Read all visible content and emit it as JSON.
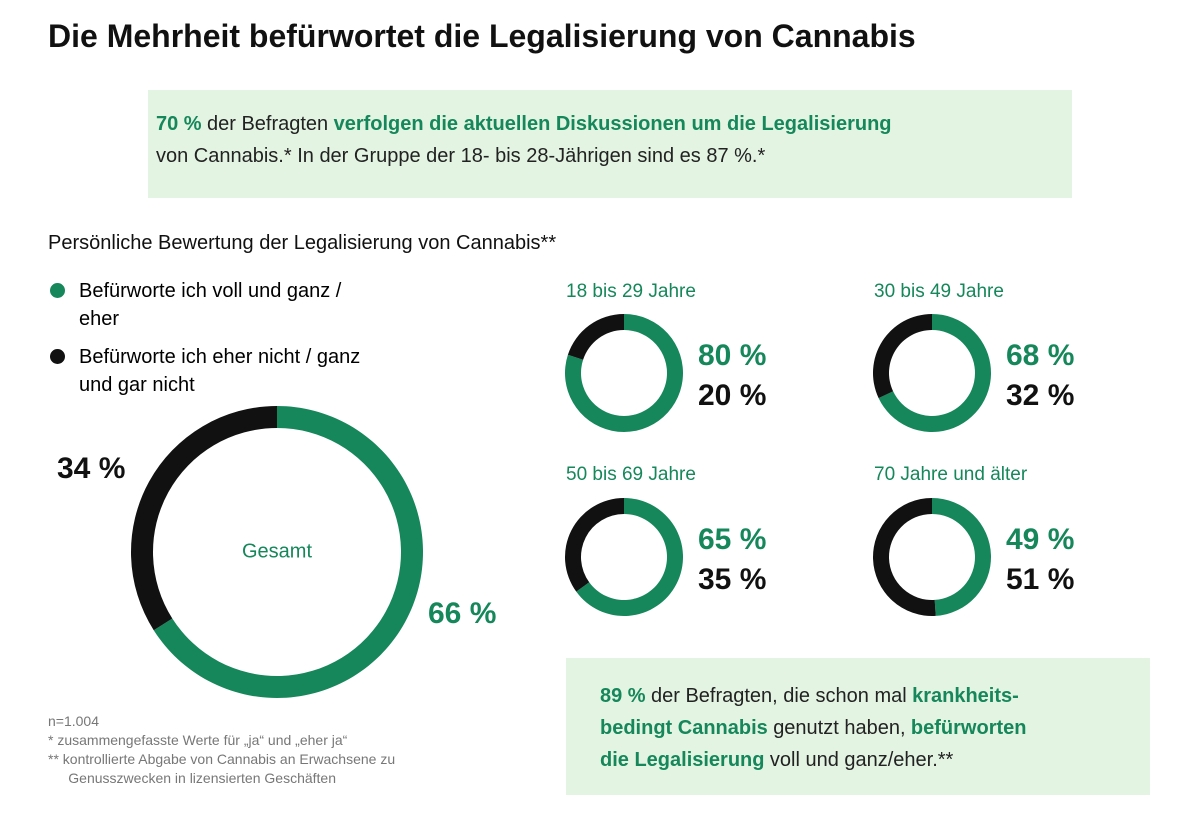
{
  "title": "Die Mehrheit befürwortet die Legalisierung von Cannabis",
  "callout_top": {
    "lines": [
      [
        {
          "text": "70 %",
          "strong": true
        },
        {
          "text": "der Befragten",
          "strong": false
        },
        {
          "text": "verfolgen die aktuellen Diskussionen um die Legalisierung",
          "strong": true
        }
      ],
      [
        {
          "text": "von Cannabis.* In der Gruppe der 18- bis 28-Jährigen sind es 87 %.*",
          "strong": false
        }
      ]
    ]
  },
  "chart_title": "Persönliche Bewertung der Legalisierung von Cannabis**",
  "legend": [
    {
      "name": "Befürworte ich voll und ganz / eher",
      "color": "#15875a"
    },
    {
      "name": "Befürworte ich eher nicht / ganz und gar nicht",
      "color": "#111111"
    }
  ],
  "chart_data": [
    {
      "type": "pie",
      "label": "Gesamt",
      "values": [
        66,
        34
      ],
      "value_labels": [
        "66 %",
        "34 %"
      ]
    },
    {
      "type": "pie",
      "title": "18 bis 29 Jahre",
      "values": [
        80,
        20
      ],
      "value_labels": [
        "80 %",
        "20 %"
      ]
    },
    {
      "type": "pie",
      "title": "30 bis 49 Jahre",
      "values": [
        68,
        32
      ],
      "value_labels": [
        "68 %",
        "32 %"
      ]
    },
    {
      "type": "pie",
      "title": "50 bis 69 Jahre",
      "values": [
        65,
        35
      ],
      "value_labels": [
        "65 %",
        "35 %"
      ]
    },
    {
      "type": "pie",
      "title": "70 Jahre und älter",
      "values": [
        49,
        51
      ],
      "value_labels": [
        "49 %",
        "51 %"
      ]
    }
  ],
  "footnotes": [
    "n=1.004",
    "* zusammengefasste Werte für „ja“ und „eher ja“",
    "** kontrollierte Abgabe von Cannabis an Erwachsene zu Genusszwecken in lizensierten Geschäften"
  ],
  "callout_bottom": {
    "lines": [
      [
        {
          "text": "89 %",
          "strong": true
        },
        {
          "text": "der Befragten, die schon mal",
          "strong": false
        },
        {
          "text": "krankheits-",
          "strong": true
        }
      ],
      [
        {
          "text": "bedingt Cannabis",
          "strong": true
        },
        {
          "text": "genutzt haben,",
          "strong": false
        },
        {
          "text": "befürworten",
          "strong": true
        }
      ],
      [
        {
          "text": "die Legalisierung",
          "strong": true
        },
        {
          "text": "voll und ganz/eher.**",
          "strong": false
        }
      ]
    ]
  }
}
